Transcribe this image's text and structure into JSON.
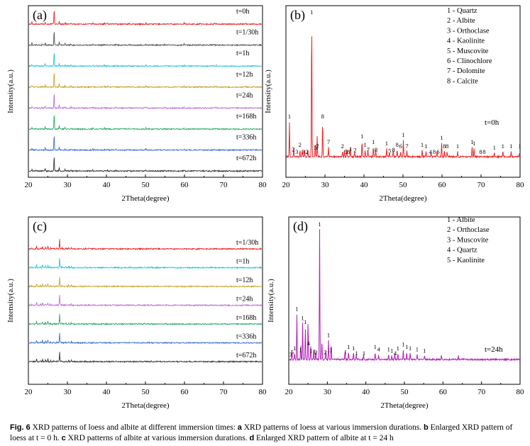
{
  "caption": {
    "label": "Fig. 6",
    "parts": [
      {
        "t": " XRD patterns of loess and albite at different immersion times: ",
        "b": false
      },
      {
        "t": "a",
        "b": true
      },
      {
        "t": " XRD patterns of loess at various immersion durations. ",
        "b": false
      },
      {
        "t": "b",
        "b": true
      },
      {
        "t": " Enlarged XRD pattern of loess at t = 0 h. ",
        "b": false
      },
      {
        "t": "c",
        "b": true
      },
      {
        "t": " XRD patterns of albite at various immersion durations. ",
        "b": false
      },
      {
        "t": "d",
        "b": true
      },
      {
        "t": " Enlarged XRD pattern of albite at t = 24 h",
        "b": false
      }
    ]
  },
  "chart_data": [
    {
      "id": "a",
      "panel_label": "(a)",
      "type": "line",
      "xlabel": "2Theta(degree)",
      "ylabel": "Intensity(a.u.)",
      "xlim": [
        20,
        80
      ],
      "xticks": [
        "20",
        "30",
        "40",
        "50",
        "60",
        "70",
        "80"
      ],
      "series": [
        {
          "name": "t=0h",
          "color": "#e8262a"
        },
        {
          "name": "t=1/30h",
          "color": "#555555"
        },
        {
          "name": "t=1h",
          "color": "#21c7d6"
        },
        {
          "name": "t=12h",
          "color": "#c9a227"
        },
        {
          "name": "t=24h",
          "color": "#bf6fd6"
        },
        {
          "name": "t=168h",
          "color": "#2aa866"
        },
        {
          "name": "t=336h",
          "color": "#3f6fd0"
        },
        {
          "name": "t=672h",
          "color": "#333333"
        }
      ],
      "peaks": [
        [
          20.9,
          0.12
        ],
        [
          22.0,
          0.05
        ],
        [
          23.5,
          0.05
        ],
        [
          24.3,
          0.16
        ],
        [
          26.6,
          1.0
        ],
        [
          27.9,
          0.22
        ],
        [
          29.4,
          0.1
        ],
        [
          30.9,
          0.07
        ],
        [
          36.5,
          0.07
        ],
        [
          39.5,
          0.08
        ],
        [
          40.3,
          0.05
        ],
        [
          42.4,
          0.06
        ],
        [
          45.8,
          0.05
        ],
        [
          50.1,
          0.09
        ],
        [
          54.9,
          0.04
        ],
        [
          59.9,
          0.08
        ],
        [
          64.0,
          0.03
        ],
        [
          67.7,
          0.06
        ],
        [
          68.2,
          0.05
        ],
        [
          75.6,
          0.03
        ],
        [
          77.7,
          0.03
        ]
      ]
    },
    {
      "id": "b",
      "panel_label": "(b)",
      "type": "line",
      "xlabel": "2Theta(degree)",
      "ylabel": "Intensity(a.u.)",
      "xlim": [
        20,
        80
      ],
      "xticks": [
        "20",
        "30",
        "40",
        "50",
        "60",
        "70",
        "80"
      ],
      "series": [
        {
          "name": "t=0h",
          "color": "#e8262a"
        }
      ],
      "legend": [
        "1 - Quartz",
        "2 - Albite",
        "3 - Orthoclase",
        "4 - Kaolinite",
        "5 - Muscovite",
        "6 - Clinochlore",
        "7 - Dolomite",
        "8 - Calcite"
      ],
      "peaks": [
        [
          20.9,
          0.25
        ],
        [
          22.0,
          0.06
        ],
        [
          23.6,
          0.05
        ],
        [
          24.2,
          0.05
        ],
        [
          24.8,
          0.05
        ],
        [
          25.6,
          0.05
        ],
        [
          26.6,
          1.0
        ],
        [
          27.5,
          0.1
        ],
        [
          28.0,
          0.15
        ],
        [
          29.4,
          0.25
        ],
        [
          30.9,
          0.07
        ],
        [
          34.5,
          0.04
        ],
        [
          35.0,
          0.05
        ],
        [
          35.6,
          0.05
        ],
        [
          36.5,
          0.07
        ],
        [
          37.6,
          0.04
        ],
        [
          39.5,
          0.11
        ],
        [
          40.3,
          0.05
        ],
        [
          41.0,
          0.05
        ],
        [
          42.4,
          0.07
        ],
        [
          43.0,
          0.05
        ],
        [
          45.8,
          0.06
        ],
        [
          46.5,
          0.03
        ],
        [
          47.5,
          0.05
        ],
        [
          48.5,
          0.05
        ],
        [
          49.4,
          0.04
        ],
        [
          50.1,
          0.12
        ],
        [
          51.0,
          0.04
        ],
        [
          54.9,
          0.05
        ],
        [
          55.9,
          0.04
        ],
        [
          57.2,
          0.03
        ],
        [
          58.7,
          0.04
        ],
        [
          59.9,
          0.1
        ],
        [
          60.6,
          0.04
        ],
        [
          61.3,
          0.04
        ],
        [
          64.0,
          0.04
        ],
        [
          67.7,
          0.07
        ],
        [
          68.2,
          0.06
        ],
        [
          73.4,
          0.03
        ],
        [
          75.6,
          0.04
        ],
        [
          77.7,
          0.04
        ],
        [
          79.9,
          0.04
        ]
      ],
      "annotations": [
        {
          "x": 20.9,
          "label": "1"
        },
        {
          "x": 21.9,
          "label": "2"
        },
        {
          "x": 22.8,
          "label": "3"
        },
        {
          "x": 23.6,
          "label": "2"
        },
        {
          "x": 24.4,
          "label": "3"
        },
        {
          "x": 25.4,
          "label": "2"
        },
        {
          "x": 26.6,
          "label": "1"
        },
        {
          "x": 27.6,
          "label": "5"
        },
        {
          "x": 28.1,
          "label": "2"
        },
        {
          "x": 29.4,
          "label": "8"
        },
        {
          "x": 30.9,
          "label": "7"
        },
        {
          "x": 34.5,
          "label": "2"
        },
        {
          "x": 35.4,
          "label": "5"
        },
        {
          "x": 36.0,
          "label": "8"
        },
        {
          "x": 36.6,
          "label": "1"
        },
        {
          "x": 37.7,
          "label": "2"
        },
        {
          "x": 39.5,
          "label": "1"
        },
        {
          "x": 40.3,
          "label": "1"
        },
        {
          "x": 41.1,
          "label": "7"
        },
        {
          "x": 42.4,
          "label": "1"
        },
        {
          "x": 43.1,
          "label": "8"
        },
        {
          "x": 45.8,
          "label": "1"
        },
        {
          "x": 46.6,
          "label": "5"
        },
        {
          "x": 47.6,
          "label": "8"
        },
        {
          "x": 48.5,
          "label": "8"
        },
        {
          "x": 49.4,
          "label": "6"
        },
        {
          "x": 50.1,
          "label": "1"
        },
        {
          "x": 51.0,
          "label": "7"
        },
        {
          "x": 54.9,
          "label": "1"
        },
        {
          "x": 55.9,
          "label": "1"
        },
        {
          "x": 57.0,
          "label": "4"
        },
        {
          "x": 58.0,
          "label": "8"
        },
        {
          "x": 59.0,
          "label": "6"
        },
        {
          "x": 59.9,
          "label": "1"
        },
        {
          "x": 60.6,
          "label": "8"
        },
        {
          "x": 61.3,
          "label": "8"
        },
        {
          "x": 64.0,
          "label": "1"
        },
        {
          "x": 67.7,
          "label": "1"
        },
        {
          "x": 68.2,
          "label": "1"
        },
        {
          "x": 69.9,
          "label": "8"
        },
        {
          "x": 70.8,
          "label": "8"
        },
        {
          "x": 73.4,
          "label": "1"
        },
        {
          "x": 75.6,
          "label": "1"
        },
        {
          "x": 77.7,
          "label": "1"
        },
        {
          "x": 79.9,
          "label": "1"
        }
      ]
    },
    {
      "id": "c",
      "panel_label": "(c)",
      "type": "line",
      "xlabel": "2Theta(degree)",
      "ylabel": "Intensity(a.u.)",
      "xlim": [
        20,
        80
      ],
      "xticks": [
        "20",
        "30",
        "40",
        "50",
        "60",
        "70",
        "80"
      ],
      "series": [
        {
          "name": "t=1/30h",
          "color": "#e8262a"
        },
        {
          "name": "t=1h",
          "color": "#21c7d6"
        },
        {
          "name": "t=12h",
          "color": "#c9a227"
        },
        {
          "name": "t=24h",
          "color": "#bf6fd6"
        },
        {
          "name": "t=168h",
          "color": "#2aa866"
        },
        {
          "name": "t=336h",
          "color": "#3f6fd0"
        },
        {
          "name": "t=672h",
          "color": "#333333"
        }
      ],
      "peaks": [
        [
          20.8,
          0.06
        ],
        [
          22.1,
          0.3
        ],
        [
          23.1,
          0.1
        ],
        [
          23.6,
          0.28
        ],
        [
          24.4,
          0.2
        ],
        [
          25.0,
          0.28
        ],
        [
          25.7,
          0.1
        ],
        [
          26.5,
          0.08
        ],
        [
          27.3,
          0.07
        ],
        [
          28.0,
          1.0
        ],
        [
          28.6,
          0.12
        ],
        [
          29.6,
          0.08
        ],
        [
          30.3,
          0.13
        ],
        [
          31.0,
          0.12
        ],
        [
          34.6,
          0.06
        ],
        [
          35.5,
          0.05
        ],
        [
          36.8,
          0.05
        ],
        [
          39.4,
          0.04
        ],
        [
          42.4,
          0.05
        ],
        [
          45.9,
          0.04
        ],
        [
          48.3,
          0.04
        ],
        [
          49.7,
          0.06
        ],
        [
          50.6,
          0.05
        ],
        [
          51.5,
          0.05
        ],
        [
          53.3,
          0.03
        ],
        [
          55.2,
          0.03
        ]
      ]
    },
    {
      "id": "d",
      "panel_label": "(d)",
      "type": "line",
      "xlabel": "2Theta(degree)",
      "ylabel": "Intensity(a.u.)",
      "xlim": [
        20,
        80
      ],
      "xticks": [
        "20",
        "30",
        "40",
        "50",
        "60",
        "70",
        "80"
      ],
      "series": [
        {
          "name": "t=24h",
          "color": "#b51fb8"
        }
      ],
      "legend": [
        "1 - Albite",
        "2 - Orthoclase",
        "3 - Muscovite",
        "4 - Quartz",
        "5 - Kaolinite"
      ],
      "peaks": [
        [
          20.8,
          0.07
        ],
        [
          21.5,
          0.05
        ],
        [
          22.1,
          0.35
        ],
        [
          23.1,
          0.12
        ],
        [
          23.6,
          0.28
        ],
        [
          24.3,
          0.25
        ],
        [
          25.0,
          0.3
        ],
        [
          25.7,
          0.1
        ],
        [
          26.5,
          0.08
        ],
        [
          27.0,
          0.06
        ],
        [
          28.0,
          1.0
        ],
        [
          28.6,
          0.15
        ],
        [
          29.6,
          0.07
        ],
        [
          30.3,
          0.15
        ],
        [
          31.0,
          0.12
        ],
        [
          34.6,
          0.07
        ],
        [
          35.5,
          0.06
        ],
        [
          36.8,
          0.05
        ],
        [
          37.5,
          0.04
        ],
        [
          39.4,
          0.04
        ],
        [
          42.4,
          0.06
        ],
        [
          43.3,
          0.04
        ],
        [
          45.9,
          0.04
        ],
        [
          46.7,
          0.03
        ],
        [
          47.5,
          0.04
        ],
        [
          48.3,
          0.05
        ],
        [
          49.7,
          0.08
        ],
        [
          50.6,
          0.06
        ],
        [
          51.5,
          0.05
        ],
        [
          53.3,
          0.04
        ],
        [
          55.2,
          0.03
        ],
        [
          59.6,
          0.03
        ],
        [
          64.0,
          0.03
        ]
      ],
      "annotations": [
        {
          "x": 20.5,
          "label": "3"
        },
        {
          "x": 20.9,
          "label": "5"
        },
        {
          "x": 21.5,
          "label": "1"
        },
        {
          "x": 22.1,
          "label": "1"
        },
        {
          "x": 23.0,
          "label": "1"
        },
        {
          "x": 23.6,
          "label": "1"
        },
        {
          "x": 24.3,
          "label": "1"
        },
        {
          "x": 25.1,
          "label": "4"
        },
        {
          "x": 25.8,
          "label": "1"
        },
        {
          "x": 26.6,
          "label": "1"
        },
        {
          "x": 27.1,
          "label": "2"
        },
        {
          "x": 28.0,
          "label": "1"
        },
        {
          "x": 29.5,
          "label": "2"
        },
        {
          "x": 30.3,
          "label": "1"
        },
        {
          "x": 30.9,
          "label": "1"
        },
        {
          "x": 34.7,
          "label": "1"
        },
        {
          "x": 35.5,
          "label": "1"
        },
        {
          "x": 36.8,
          "label": "1"
        },
        {
          "x": 37.6,
          "label": "1"
        },
        {
          "x": 39.5,
          "label": "1"
        },
        {
          "x": 42.4,
          "label": "1"
        },
        {
          "x": 43.3,
          "label": "4"
        },
        {
          "x": 45.9,
          "label": "1"
        },
        {
          "x": 46.7,
          "label": "1"
        },
        {
          "x": 47.6,
          "label": "4"
        },
        {
          "x": 48.3,
          "label": "1"
        },
        {
          "x": 49.7,
          "label": "1"
        },
        {
          "x": 50.6,
          "label": "1"
        },
        {
          "x": 51.5,
          "label": "1"
        },
        {
          "x": 53.3,
          "label": "1"
        },
        {
          "x": 55.2,
          "label": "1"
        }
      ]
    }
  ]
}
